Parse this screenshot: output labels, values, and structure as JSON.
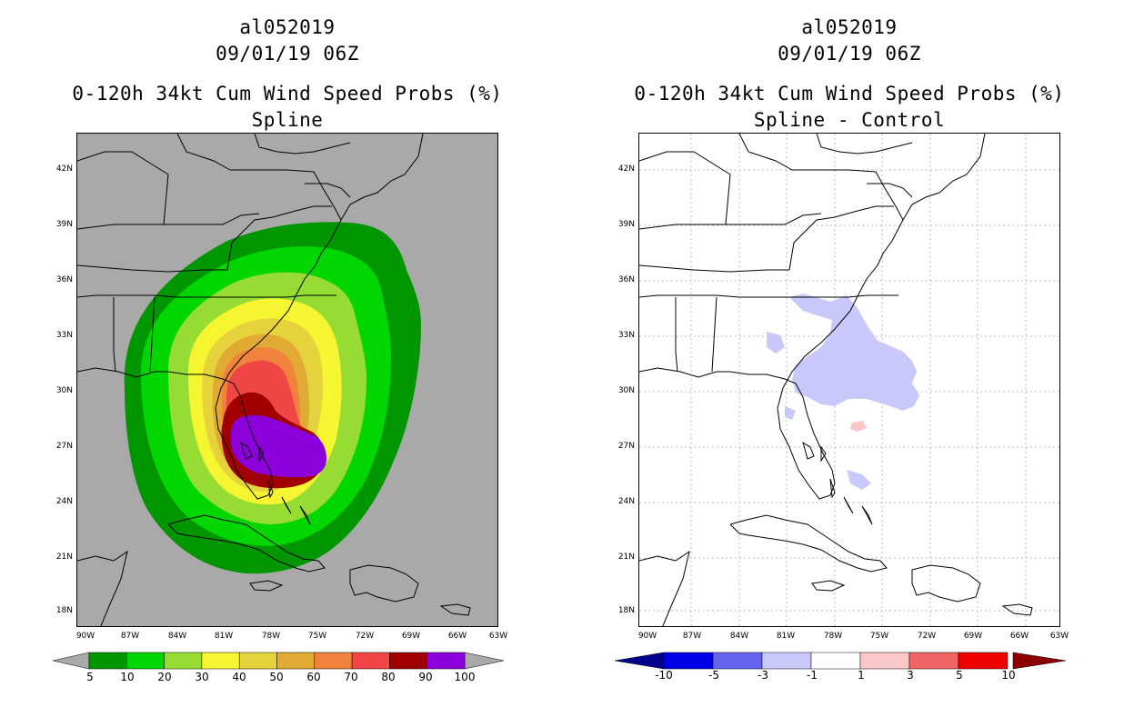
{
  "left": {
    "title1": "al052019",
    "title2": "09/01/19 06Z",
    "title3": "0-120h 34kt Cum Wind Speed Probs (%)",
    "title4": "Spline",
    "colorbar": {
      "colors": [
        "#009600",
        "#00d600",
        "#96dc32",
        "#f5f532",
        "#e6d23c",
        "#e1aa32",
        "#f0823c",
        "#f04646",
        "#a00000",
        "#8c00dc"
      ],
      "labels": [
        "5",
        "10",
        "20",
        "30",
        "40",
        "50",
        "60",
        "70",
        "80",
        "90",
        "100"
      ]
    }
  },
  "right": {
    "title1": "al052019",
    "title2": "09/01/19 06Z",
    "title3": "0-120h 34kt Cum Wind Speed Probs (%)",
    "title4": "Spline - Control",
    "colorbar": {
      "colors": [
        "#00008c",
        "#0000e6",
        "#6464f0",
        "#c8c8fa",
        "#ffffff",
        "#fac8c8",
        "#f06464",
        "#f00000",
        "#8c0000"
      ],
      "labels": [
        "-10",
        "-5",
        "-3",
        "-1",
        "1",
        "3",
        "5",
        "10"
      ]
    }
  },
  "axes": {
    "lat_labels": [
      "42N",
      "39N",
      "36N",
      "33N",
      "30N",
      "27N",
      "24N",
      "21N",
      "18N"
    ],
    "lon_labels": [
      "90W",
      "87W",
      "84W",
      "81W",
      "78W",
      "75W",
      "72W",
      "69W",
      "66W",
      "63W"
    ]
  }
}
